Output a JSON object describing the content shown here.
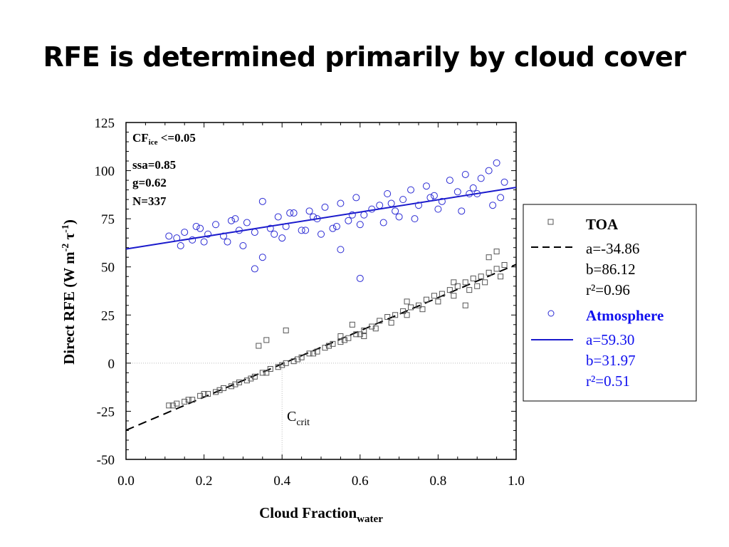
{
  "slide": {
    "title": "RFE is determined primarily by cloud cover"
  },
  "chart_data": {
    "type": "scatter",
    "xlabel": {
      "main": "Cloud Fraction",
      "sub": "water"
    },
    "ylabel": {
      "pre": "Direct RFE (W m",
      "sup1": "-2",
      "mid": " τ",
      "sup2": "-1",
      "post": ")"
    },
    "xlim": [
      0.0,
      1.0
    ],
    "ylim": [
      -50,
      125
    ],
    "xticks": [
      0.0,
      0.2,
      0.4,
      0.6,
      0.8,
      1.0
    ],
    "xtick_labels": [
      "0.0",
      "0.2",
      "0.4",
      "0.6",
      "0.8",
      "1.0"
    ],
    "yticks": [
      -50,
      -25,
      0,
      25,
      50,
      75,
      100,
      125
    ],
    "ytick_labels": [
      "-50",
      "-25",
      "0",
      "25",
      "50",
      "75",
      "100",
      "125"
    ],
    "annotation_lines": [
      {
        "main": "CF",
        "sub": "ice",
        "rest": " <=0.05"
      },
      {
        "main": "ssa=0.85"
      },
      {
        "main": "g=0.62"
      },
      {
        "main": "N=337"
      }
    ],
    "ccrit": {
      "main": "C",
      "sub": "crit",
      "x": 0.4
    },
    "series": [
      {
        "name": "TOA",
        "marker": "square",
        "color": "#555555",
        "line_style": "dashed",
        "fit": {
          "a": -34.86,
          "b": 86.12,
          "r2": 0.96
        },
        "fit_labels": [
          "a=-34.86",
          "b=86.12",
          "r²=0.96"
        ],
        "x": [
          0.11,
          0.13,
          0.15,
          0.17,
          0.19,
          0.21,
          0.23,
          0.25,
          0.27,
          0.29,
          0.31,
          0.33,
          0.35,
          0.37,
          0.39,
          0.41,
          0.43,
          0.45,
          0.47,
          0.49,
          0.51,
          0.53,
          0.55,
          0.57,
          0.59,
          0.61,
          0.63,
          0.65,
          0.67,
          0.69,
          0.71,
          0.73,
          0.75,
          0.77,
          0.79,
          0.81,
          0.83,
          0.85,
          0.87,
          0.89,
          0.91,
          0.93,
          0.95,
          0.97,
          0.34,
          0.36,
          0.41,
          0.52,
          0.55,
          0.58,
          0.61,
          0.72,
          0.84,
          0.87,
          0.9,
          0.93,
          0.95,
          0.12,
          0.16,
          0.2,
          0.24,
          0.28,
          0.32,
          0.36,
          0.4,
          0.44,
          0.48,
          0.52,
          0.56,
          0.6,
          0.64,
          0.68,
          0.72,
          0.76,
          0.8,
          0.84,
          0.88,
          0.92,
          0.96
        ],
        "y": [
          -22,
          -21,
          -20,
          -19,
          -17,
          -16,
          -15,
          -13,
          -12,
          -10,
          -9,
          -7,
          -5,
          -3,
          -2,
          0,
          1,
          3,
          5,
          6,
          8,
          10,
          11,
          13,
          15,
          17,
          19,
          22,
          24,
          25,
          27,
          29,
          30,
          33,
          35,
          36,
          38,
          40,
          42,
          44,
          45,
          47,
          49,
          51,
          9,
          12,
          17,
          9,
          14,
          20,
          14,
          32,
          42,
          30,
          40,
          55,
          58,
          -22,
          -19,
          -16,
          -14,
          -11,
          -8,
          -5,
          -1,
          2,
          5,
          9,
          12,
          15,
          18,
          21,
          25,
          28,
          32,
          35,
          38,
          42,
          45
        ]
      },
      {
        "name": "Atmosphere",
        "marker": "circle",
        "color": "#2b2bd4",
        "line_style": "solid",
        "fit": {
          "a": 59.3,
          "b": 31.97,
          "r2": 0.51
        },
        "fit_labels": [
          "a=59.30",
          "b=31.97",
          "r²=0.51"
        ],
        "x": [
          0.11,
          0.13,
          0.15,
          0.17,
          0.19,
          0.21,
          0.23,
          0.25,
          0.27,
          0.29,
          0.31,
          0.33,
          0.35,
          0.37,
          0.39,
          0.41,
          0.43,
          0.45,
          0.47,
          0.49,
          0.51,
          0.53,
          0.55,
          0.57,
          0.59,
          0.61,
          0.63,
          0.65,
          0.67,
          0.69,
          0.71,
          0.73,
          0.75,
          0.77,
          0.79,
          0.81,
          0.83,
          0.85,
          0.87,
          0.89,
          0.91,
          0.93,
          0.95,
          0.97,
          0.33,
          0.35,
          0.55,
          0.6,
          0.2,
          0.3,
          0.4,
          0.5,
          0.6,
          0.7,
          0.8,
          0.9,
          0.14,
          0.26,
          0.38,
          0.46,
          0.54,
          0.66,
          0.74,
          0.86,
          0.94,
          0.18,
          0.28,
          0.42,
          0.48,
          0.58,
          0.68,
          0.78,
          0.88,
          0.96
        ],
        "y": [
          66,
          65,
          68,
          64,
          70,
          67,
          72,
          66,
          74,
          69,
          73,
          68,
          84,
          70,
          76,
          71,
          78,
          69,
          79,
          75,
          81,
          70,
          83,
          74,
          86,
          77,
          80,
          82,
          88,
          79,
          85,
          90,
          82,
          92,
          87,
          84,
          95,
          89,
          98,
          91,
          96,
          100,
          104,
          94,
          49,
          55,
          59,
          44,
          63,
          61,
          65,
          67,
          72,
          76,
          80,
          88,
          61,
          63,
          67,
          69,
          71,
          73,
          75,
          79,
          82,
          71,
          75,
          78,
          76,
          77,
          83,
          86,
          88,
          86
        ]
      }
    ]
  }
}
